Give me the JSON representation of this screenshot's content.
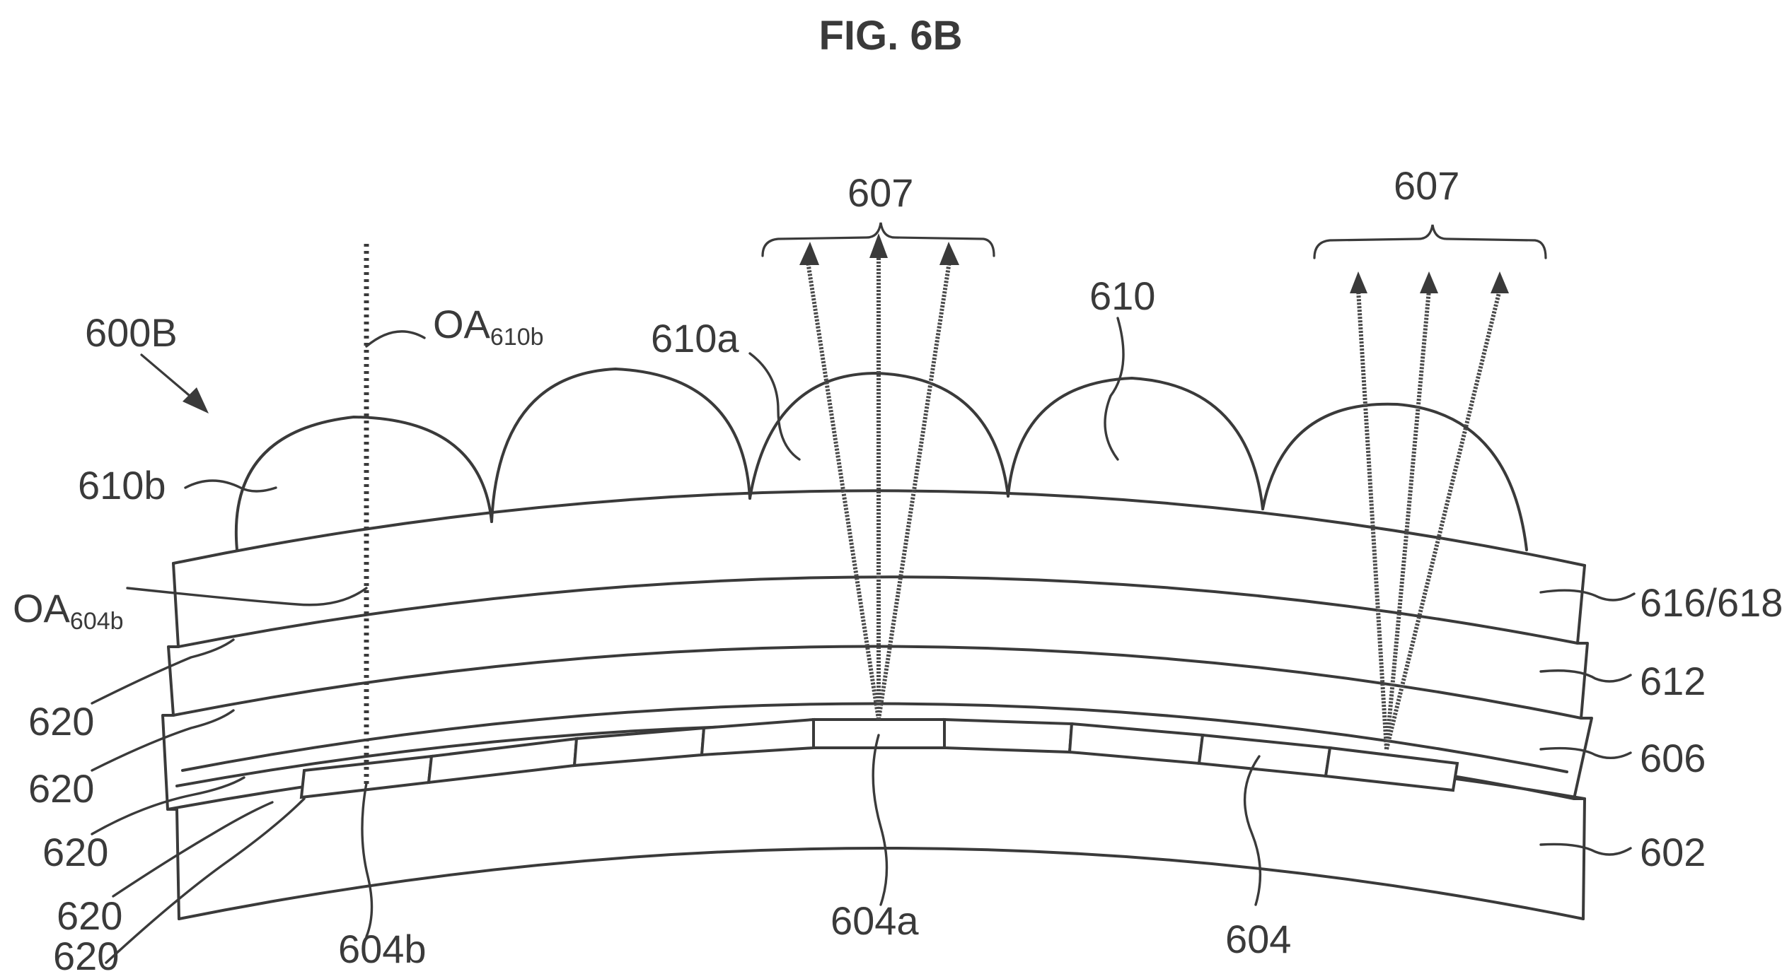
{
  "figure": {
    "title": "FIG. 6B"
  },
  "labels": {
    "assembly": "600B",
    "optic_axis_lens": "OA",
    "optic_axis_lens_sub": "610b",
    "optic_axis_pixel": "OA",
    "optic_axis_pixel_sub": "604b",
    "lens_a": "610a",
    "lens_b": "610b",
    "lens_array": "610",
    "ray_group_left": "607",
    "ray_group_right": "607",
    "layer_top": "616/618",
    "layer_612": "612",
    "layer_606": "606",
    "substrate": "602",
    "pixel_array": "604",
    "pixel_a": "604a",
    "pixel_b": "604b",
    "interface_1": "620",
    "interface_2": "620",
    "interface_3": "620",
    "interface_4": "620",
    "interface_5": "620"
  }
}
